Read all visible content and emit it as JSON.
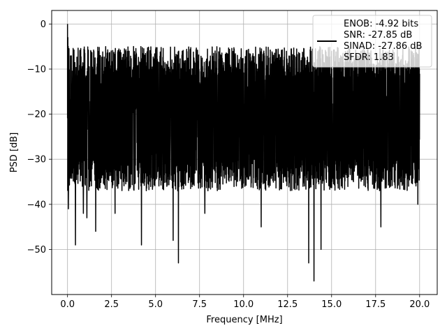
{
  "chart_data": {
    "type": "line",
    "title": "",
    "xlabel": "Frequency [MHz]",
    "ylabel": "PSD [dB]",
    "xlim": [
      -0.9,
      21.0
    ],
    "ylim": [
      -60,
      3
    ],
    "xticks": [
      0.0,
      2.5,
      5.0,
      7.5,
      10.0,
      12.5,
      15.0,
      17.5,
      20.0
    ],
    "xtick_labels": [
      "0.0",
      "2.5",
      "5.0",
      "7.5",
      "10.0",
      "12.5",
      "15.0",
      "17.5",
      "20.0"
    ],
    "yticks": [
      0,
      -10,
      -20,
      -30,
      -40,
      -50
    ],
    "ytick_labels": [
      "0",
      "−10",
      "−20",
      "−30",
      "−40",
      "−50"
    ],
    "grid": true,
    "legend_position": "top-right",
    "legend_lines": [
      "ENOB: -4.92 bits",
      "SNR: -27.85 dB",
      "SINAD: -27.86 dB",
      "SFDR: 1.83"
    ],
    "series": [
      {
        "color": "#000000",
        "x_range": [
          0.0,
          20.0
        ],
        "band_upper_db": -7,
        "band_lower_db": -33,
        "peak": {
          "x": 0.0,
          "y": 0.0
        },
        "dips": [
          {
            "x": 0.05,
            "y": -41
          },
          {
            "x": 0.45,
            "y": -49
          },
          {
            "x": 0.9,
            "y": -42
          },
          {
            "x": 1.1,
            "y": -43
          },
          {
            "x": 1.6,
            "y": -46
          },
          {
            "x": 2.7,
            "y": -42
          },
          {
            "x": 4.2,
            "y": -49
          },
          {
            "x": 6.0,
            "y": -48
          },
          {
            "x": 6.3,
            "y": -53
          },
          {
            "x": 7.8,
            "y": -42
          },
          {
            "x": 11.0,
            "y": -45
          },
          {
            "x": 13.7,
            "y": -53
          },
          {
            "x": 14.0,
            "y": -57
          },
          {
            "x": 14.4,
            "y": -50
          },
          {
            "x": 17.8,
            "y": -45
          },
          {
            "x": 19.9,
            "y": -40
          }
        ]
      }
    ]
  }
}
